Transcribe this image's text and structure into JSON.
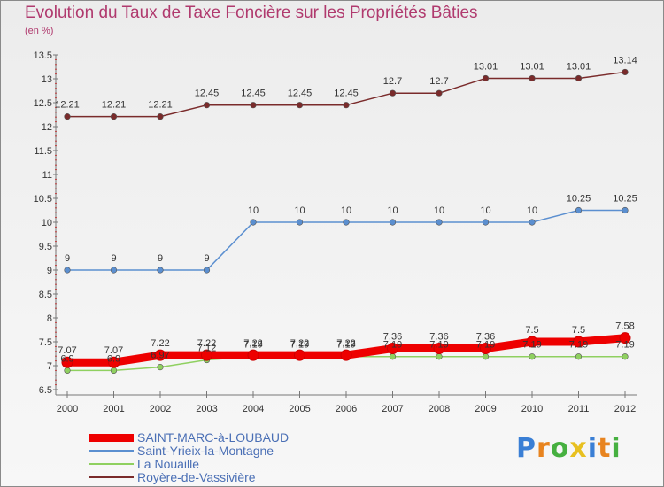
{
  "chart_data": {
    "type": "line",
    "title": "Evolution du Taux de Taxe Foncière sur les Propriétés Bâties",
    "unit_label": "(en %)",
    "xlabel": "",
    "ylabel": "",
    "x": [
      "2000",
      "2001",
      "2002",
      "2003",
      "2004",
      "2005",
      "2006",
      "2007",
      "2008",
      "2009",
      "2010",
      "2011",
      "2012"
    ],
    "ylim": [
      6.5,
      13.5
    ],
    "yticks": [
      "6.5",
      "7",
      "7.5",
      "8",
      "8.5",
      "9",
      "9.5",
      "10",
      "10.5",
      "11",
      "11.5",
      "12",
      "12.5",
      "13",
      "13.5"
    ],
    "grid": false,
    "legend_position": "bottom-left",
    "series": [
      {
        "name": "Royère-de-Vassivière",
        "color": "#7a2b2b",
        "values": [
          12.21,
          12.21,
          12.21,
          12.45,
          12.45,
          12.45,
          12.45,
          12.7,
          12.7,
          13.01,
          13.01,
          13.01,
          13.14
        ],
        "labels": [
          "12.21",
          "12.21",
          "12.21",
          "12.45",
          "12.45",
          "12.45",
          "12.45",
          "12.7",
          "12.7",
          "13.01",
          "13.01",
          "13.01",
          "13.14"
        ]
      },
      {
        "name": "Saint-Yrieix-la-Montagne",
        "color": "#5b8fd0",
        "values": [
          9,
          9,
          9,
          9,
          10,
          10,
          10,
          10,
          10,
          10,
          10,
          10.25,
          10.25
        ],
        "labels": [
          "9",
          "9",
          "9",
          "9",
          "10",
          "10",
          "10",
          "10",
          "10",
          "10",
          "10",
          "10.25",
          "10.25"
        ]
      },
      {
        "name": "La Nouaille",
        "color": "#8fd060",
        "values": [
          6.9,
          6.9,
          6.97,
          7.12,
          7.19,
          7.19,
          7.19,
          7.19,
          7.19,
          7.19,
          7.19,
          7.19,
          7.19
        ],
        "labels": [
          "6.9",
          "6.9",
          "6.97",
          "7.12",
          "7.19",
          "7.19",
          "7.19",
          "7.19",
          "7.19",
          "7.19",
          "7.19",
          "7.19",
          "7.19"
        ]
      },
      {
        "name": "SAINT-MARC-à-LOUBAUD",
        "color": "#ee0000",
        "values": [
          7.07,
          7.07,
          7.22,
          7.22,
          7.22,
          7.22,
          7.22,
          7.36,
          7.36,
          7.36,
          7.5,
          7.5,
          7.58
        ],
        "labels": [
          "7.07",
          "7.07",
          "7.22",
          "7.22",
          "7.22",
          "7.22",
          "7.22",
          "7.36",
          "7.36",
          "7.36",
          "7.5",
          "7.5",
          "7.58"
        ]
      }
    ]
  },
  "legend": [
    {
      "label": "SAINT-MARC-à-LOUBAUD",
      "color": "#ee0000"
    },
    {
      "label": "Saint-Yrieix-la-Montagne",
      "color": "#5b8fd0"
    },
    {
      "label": "La Nouaille",
      "color": "#8fd060"
    },
    {
      "label": "Royère-de-Vassivière",
      "color": "#7a2b2b"
    }
  ],
  "logo": {
    "text": "Proxiti",
    "colors": [
      "#3a7fd5",
      "#e8841f",
      "#46b040",
      "#e8c020",
      "#3a7fd5",
      "#e8841f",
      "#46b040"
    ]
  }
}
